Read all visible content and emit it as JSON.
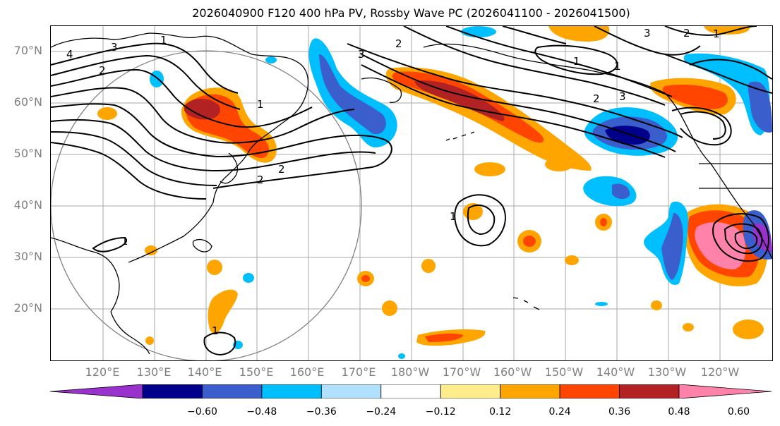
{
  "title": "2026040900 F120 400 hPa PV, Rossby Wave PC (2026041100 - 2026041500)",
  "lat_labels": [
    "70°N",
    "60°N",
    "50°N",
    "40°N",
    "30°N",
    "20°N"
  ],
  "lon_labels": [
    "120°E",
    "130°E",
    "140°E",
    "150°E",
    "160°E",
    "170°E",
    "180°W",
    "170°W",
    "160°W",
    "150°W",
    "140°W",
    "130°W",
    "120°W"
  ],
  "contour_labels": [
    "4",
    "3",
    "2",
    "1",
    "1",
    "2",
    "2",
    "3",
    "1",
    "1",
    "1",
    "2",
    "3",
    "2",
    "1",
    "1",
    "1",
    "2",
    "3"
  ],
  "colorbar": {
    "ticks": [
      "−0.60",
      "−0.48",
      "−0.36",
      "−0.24",
      "−0.12",
      "0.12",
      "0.24",
      "0.36",
      "0.48",
      "0.60"
    ],
    "colors": [
      "#9932cc",
      "#00008b",
      "#3a5fcd",
      "#00bfff",
      "#b0e2ff",
      "#ffffff",
      "#ffec8b",
      "#ffa500",
      "#ff4500",
      "#b22222",
      "#ff82ab"
    ]
  }
}
